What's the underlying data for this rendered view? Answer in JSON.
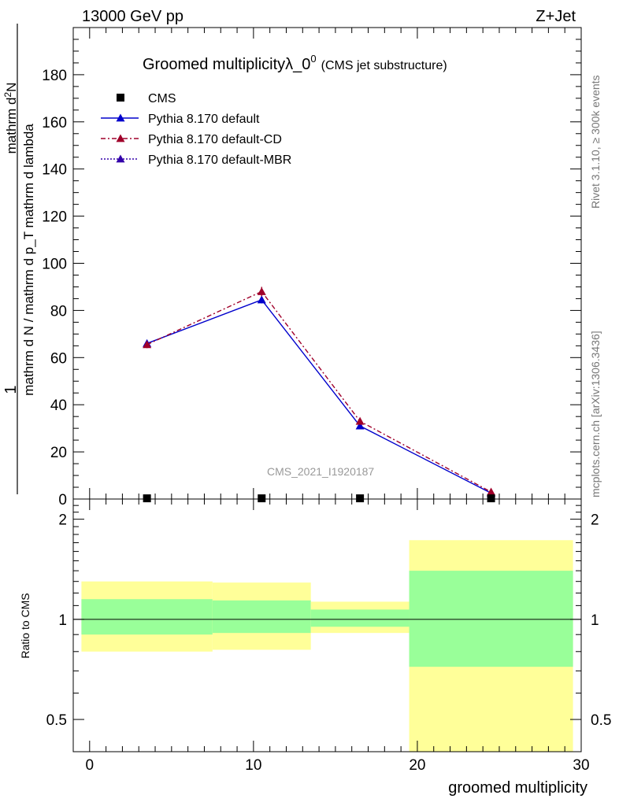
{
  "header": {
    "left_label": "13000 GeV pp",
    "right_label": "Z+Jet"
  },
  "side_labels": {
    "rivet": "Rivet 3.1.10, ≥ 300k events",
    "mcplots": "mcplots.cern.ch [arXiv:1306.3436]"
  },
  "chart_data": {
    "type": "line",
    "title_main": "Groomed multiplicityλ_0",
    "title_sup": "0",
    "title_sub": "(CMS jet substructure)",
    "watermark": "CMS_2021_I1920187",
    "ylabel_numerator": "1",
    "ylabel_denominator": "mathrm d N / mathrm d p_T mathrm d lambda",
    "ylabel_right": "mathrm d^2 N / mathrm d p_T mathrm d lambda",
    "xlabel": "groomed multiplicity",
    "ratio_ylabel": "Ratio to CMS",
    "xlim": [
      -1,
      30
    ],
    "ylim": [
      0,
      200
    ],
    "x_ticks": [
      "0",
      "10",
      "20",
      "30"
    ],
    "y_ticks": [
      "20",
      "40",
      "60",
      "80",
      "100",
      "120",
      "140",
      "160",
      "180"
    ],
    "y_zero_tick": "0",
    "ratio_ylim": [
      0.4,
      2.3
    ],
    "ratio_ticks": [
      "0.5",
      "1",
      "2"
    ],
    "bins": [
      {
        "lo": -1,
        "hi": 7.5
      },
      {
        "lo": 7.5,
        "hi": 13.5
      },
      {
        "lo": 13.5,
        "hi": 19.5
      },
      {
        "lo": 19.5,
        "hi": 30
      }
    ],
    "cms": {
      "name": "CMS",
      "x": [
        3.5,
        10.5,
        16.5,
        24.5
      ],
      "y": [
        0.3,
        0.3,
        0.3,
        0.3
      ]
    },
    "series": [
      {
        "name": "Pythia 8.170 default",
        "color": "#0000cc",
        "dash": "",
        "x": [
          3.5,
          10.5,
          16.5,
          24.5
        ],
        "y": [
          66,
          84.5,
          31,
          2.5
        ],
        "err": [
          1.5,
          1.5,
          1.0,
          0.5
        ]
      },
      {
        "name": "Pythia 8.170 default-CD",
        "color": "#a0002a",
        "dash": "6,3,2,3",
        "x": [
          3.5,
          10.5,
          16.5,
          24.5
        ],
        "y": [
          65.5,
          88,
          33,
          3
        ],
        "err": [
          1.5,
          2.0,
          1.0,
          0.5
        ]
      },
      {
        "name": "Pythia 8.170 default-MBR",
        "color": "#3300aa",
        "dash": "2,2",
        "x": [],
        "y": [],
        "err": []
      }
    ],
    "ratio_bands": {
      "green": [
        [
          0.9,
          1.15
        ],
        [
          0.91,
          1.14
        ],
        [
          0.95,
          1.07
        ],
        [
          0.72,
          1.4
        ]
      ],
      "yellow": [
        [
          0.8,
          1.3
        ],
        [
          0.81,
          1.29
        ],
        [
          0.91,
          1.13
        ],
        [
          0.4,
          1.73
        ]
      ]
    },
    "colors": {
      "green_band": "#99ff99",
      "yellow_band": "#ffff99",
      "cms_marker": "#000000"
    }
  }
}
